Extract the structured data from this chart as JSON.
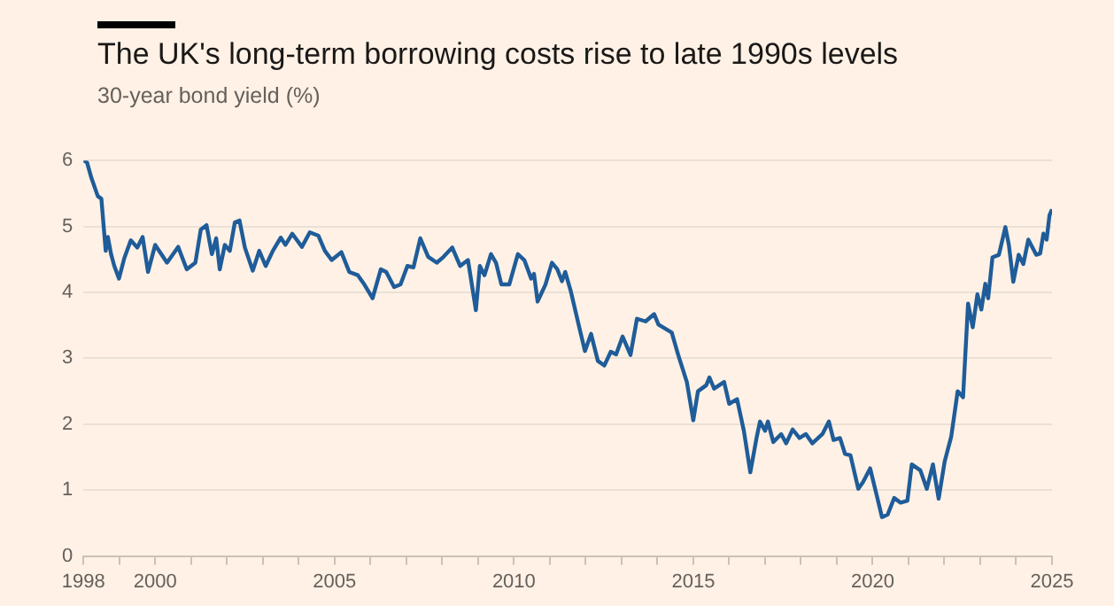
{
  "chart_data": {
    "type": "line",
    "title": "The UK's long-term borrowing costs rise to late 1990s levels",
    "subtitle": "30-year bond yield (%)",
    "series": [
      {
        "color": "#1f5c99",
        "x": [
          1998.0,
          1998.1,
          1998.22,
          1998.4,
          1998.5,
          1998.62,
          1998.68,
          1998.77,
          1998.86,
          1998.99,
          1999.14,
          1999.32,
          1999.5,
          1999.65,
          1999.8,
          2000.0,
          2000.33,
          2000.64,
          2000.88,
          2001.12,
          2001.27,
          2001.43,
          2001.58,
          2001.7,
          2001.8,
          2001.94,
          2002.08,
          2002.22,
          2002.35,
          2002.5,
          2002.72,
          2002.9,
          2003.08,
          2003.28,
          2003.5,
          2003.63,
          2003.82,
          2004.09,
          2004.31,
          2004.55,
          2004.73,
          2004.92,
          2005.19,
          2005.41,
          2005.65,
          2005.83,
          2006.06,
          2006.29,
          2006.44,
          2006.66,
          2006.84,
          2007.03,
          2007.2,
          2007.39,
          2007.61,
          2007.85,
          2008.04,
          2008.28,
          2008.5,
          2008.72,
          2008.94,
          2009.05,
          2009.18,
          2009.36,
          2009.5,
          2009.65,
          2009.87,
          2010.11,
          2010.29,
          2010.48,
          2010.56,
          2010.66,
          2010.88,
          2011.06,
          2011.21,
          2011.34,
          2011.43,
          2011.58,
          2011.8,
          2011.98,
          2012.15,
          2012.34,
          2012.52,
          2012.7,
          2012.85,
          2013.03,
          2013.25,
          2013.43,
          2013.67,
          2013.91,
          2014.03,
          2014.4,
          2014.58,
          2014.82,
          2015.0,
          2015.13,
          2015.36,
          2015.45,
          2015.58,
          2015.86,
          2016.0,
          2016.22,
          2016.41,
          2016.59,
          2016.77,
          2016.86,
          2017.0,
          2017.08,
          2017.23,
          2017.45,
          2017.59,
          2017.77,
          2017.96,
          2018.14,
          2018.32,
          2018.6,
          2018.78,
          2018.91,
          2019.09,
          2019.23,
          2019.38,
          2019.6,
          2019.73,
          2019.93,
          2020.11,
          2020.26,
          2020.42,
          2020.6,
          2020.78,
          2020.97,
          2021.09,
          2021.33,
          2021.51,
          2021.68,
          2021.84,
          2022.01,
          2022.19,
          2022.37,
          2022.52,
          2022.66,
          2022.79,
          2022.92,
          2023.03,
          2023.14,
          2023.22,
          2023.34,
          2023.52,
          2023.7,
          2023.8,
          2023.92,
          2024.07,
          2024.2,
          2024.34,
          2024.56,
          2024.67,
          2024.76,
          2024.85,
          2024.93,
          2025.0
        ],
        "values": [
          6.0,
          5.97,
          5.74,
          5.46,
          5.42,
          4.63,
          4.84,
          4.58,
          4.4,
          4.21,
          4.52,
          4.79,
          4.68,
          4.84,
          4.31,
          4.72,
          4.45,
          4.69,
          4.35,
          4.45,
          4.95,
          5.02,
          4.58,
          4.82,
          4.35,
          4.72,
          4.63,
          5.06,
          5.09,
          4.68,
          4.33,
          4.63,
          4.4,
          4.63,
          4.83,
          4.72,
          4.89,
          4.69,
          4.91,
          4.86,
          4.63,
          4.49,
          4.61,
          4.31,
          4.26,
          4.12,
          3.91,
          4.35,
          4.31,
          4.08,
          4.12,
          4.4,
          4.38,
          4.82,
          4.54,
          4.45,
          4.54,
          4.68,
          4.4,
          4.49,
          3.73,
          4.4,
          4.26,
          4.58,
          4.45,
          4.12,
          4.12,
          4.58,
          4.49,
          4.21,
          4.28,
          3.86,
          4.12,
          4.45,
          4.35,
          4.17,
          4.31,
          4.03,
          3.52,
          3.11,
          3.37,
          2.96,
          2.89,
          3.1,
          3.06,
          3.33,
          3.05,
          3.6,
          3.56,
          3.67,
          3.51,
          3.39,
          3.05,
          2.64,
          2.06,
          2.5,
          2.59,
          2.71,
          2.54,
          2.64,
          2.31,
          2.38,
          1.9,
          1.27,
          1.81,
          2.04,
          1.9,
          2.04,
          1.73,
          1.85,
          1.71,
          1.92,
          1.79,
          1.85,
          1.71,
          1.85,
          2.04,
          1.76,
          1.79,
          1.55,
          1.53,
          1.02,
          1.12,
          1.33,
          0.93,
          0.59,
          0.63,
          0.88,
          0.81,
          0.84,
          1.39,
          1.3,
          1.02,
          1.39,
          0.87,
          1.44,
          1.81,
          2.5,
          2.41,
          3.83,
          3.47,
          3.97,
          3.74,
          4.13,
          3.91,
          4.53,
          4.57,
          4.99,
          4.71,
          4.16,
          4.57,
          4.43,
          4.8,
          4.57,
          4.59,
          4.89,
          4.8,
          5.17,
          5.26
        ]
      }
    ],
    "xlim": [
      1998,
      2025
    ],
    "xticks": [
      1998,
      {
        "value": 1999,
        "label": null
      },
      2000,
      {
        "value": 2001,
        "label": null
      },
      {
        "value": 2002,
        "label": null
      },
      {
        "value": 2003,
        "label": null
      },
      {
        "value": 2004,
        "label": null
      },
      2005,
      {
        "value": 2006,
        "label": null
      },
      {
        "value": 2007,
        "label": null
      },
      {
        "value": 2008,
        "label": null
      },
      {
        "value": 2009,
        "label": null
      },
      2010,
      {
        "value": 2011,
        "label": null
      },
      {
        "value": 2012,
        "label": null
      },
      {
        "value": 2013,
        "label": null
      },
      {
        "value": 2014,
        "label": null
      },
      2015,
      {
        "value": 2016,
        "label": null
      },
      {
        "value": 2017,
        "label": null
      },
      {
        "value": 2018,
        "label": null
      },
      {
        "value": 2019,
        "label": null
      },
      2020,
      {
        "value": 2021,
        "label": null
      },
      {
        "value": 2022,
        "label": null
      },
      {
        "value": 2023,
        "label": null
      },
      {
        "value": 2024,
        "label": null
      },
      2025
    ],
    "ylim": [
      0,
      6
    ],
    "yticks": [
      0,
      1,
      2,
      3,
      4,
      5,
      6
    ],
    "grid": "y",
    "marker": "none",
    "line_style": "solid",
    "legend": false
  }
}
